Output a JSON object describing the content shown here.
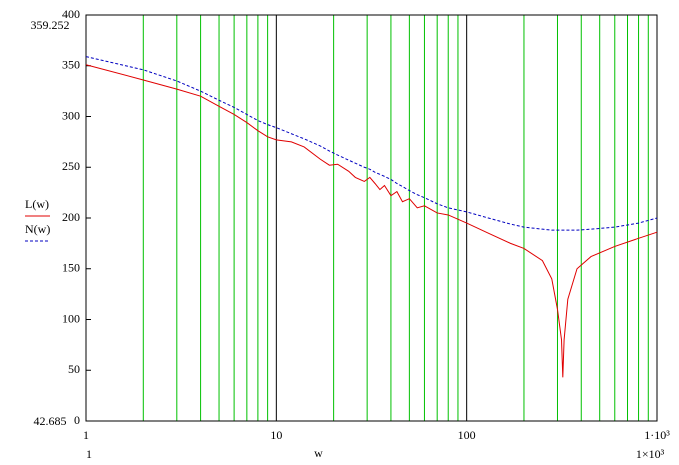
{
  "chart_data": {
    "type": "line",
    "xlog": true,
    "xlabel": "w",
    "x": [
      1,
      2,
      3,
      4,
      5,
      6,
      7,
      8,
      9,
      10,
      12,
      14,
      17,
      19,
      21,
      24,
      26,
      29,
      31,
      33,
      35,
      37,
      40,
      43,
      46,
      50,
      55,
      60,
      70,
      80,
      100,
      130,
      170,
      200,
      250,
      280,
      300,
      315,
      320,
      325,
      340,
      380,
      450,
      600,
      800,
      1000
    ],
    "series": [
      {
        "name": "L(w)",
        "color": "#e00000",
        "dash": false,
        "values": [
          351,
          336,
          327,
          320,
          310,
          302,
          294,
          286,
          280,
          277,
          275,
          270,
          258,
          252,
          253,
          246,
          240,
          236,
          240,
          234,
          228,
          232,
          222,
          226,
          216,
          219,
          210,
          212,
          205,
          203,
          195,
          185,
          175,
          170,
          158,
          140,
          110,
          80,
          43,
          80,
          120,
          150,
          162,
          172,
          180,
          186
        ]
      },
      {
        "name": "N(w)",
        "color": "#0000c0",
        "dash": true,
        "values": [
          359,
          346,
          335,
          325,
          316,
          309,
          302,
          296,
          292,
          289,
          283,
          278,
          271,
          266,
          262,
          257,
          254,
          250,
          248,
          245,
          243,
          241,
          238,
          234,
          231,
          227,
          223,
          220,
          214,
          210,
          206,
          200,
          194,
          191,
          189,
          188,
          188,
          188,
          188,
          188,
          188,
          188,
          189,
          191,
          195,
          200
        ]
      }
    ],
    "xlim": [
      1,
      1000
    ],
    "ylim": [
      0,
      400
    ],
    "xticks": [
      1,
      10,
      100,
      {
        "value": 1000,
        "label": "1·10³"
      }
    ],
    "xgrid_minor": [
      2,
      3,
      4,
      5,
      6,
      7,
      8,
      9,
      20,
      30,
      40,
      50,
      60,
      70,
      80,
      90,
      200,
      300,
      400,
      500,
      600,
      700,
      800,
      900
    ],
    "yticks": [
      0,
      50,
      100,
      150,
      200,
      250,
      300,
      350,
      400
    ],
    "y_range_labels": [
      "359.252",
      "42.685"
    ],
    "x_range_labels": [
      "1",
      "1×10³"
    ],
    "grid_color": "#00c000",
    "major_grid_color": "#000000"
  }
}
